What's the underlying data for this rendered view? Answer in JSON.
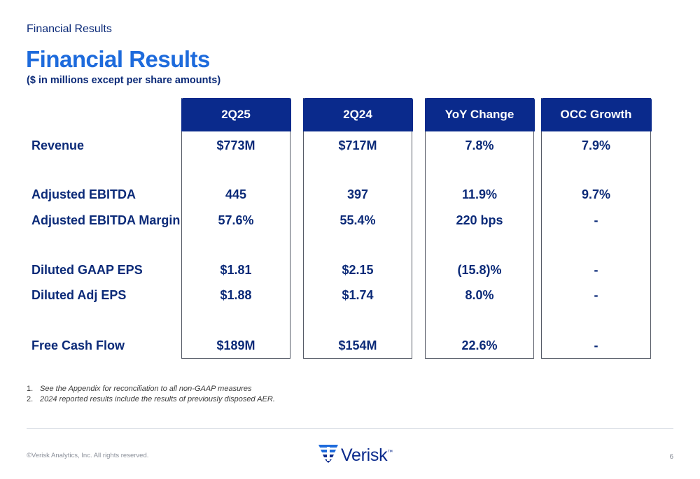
{
  "header": {
    "section_label": "Financial Results",
    "title": "Financial Results",
    "subtitle": "($ in millions except per share amounts)"
  },
  "table": {
    "columns": [
      "2Q25",
      "2Q24",
      "YoY Change",
      "OCC Growth"
    ],
    "rows": [
      {
        "label": "Revenue",
        "values": [
          "$773M",
          "$717M",
          "7.8%",
          "7.9%"
        ]
      },
      {
        "label": "Adjusted EBITDA",
        "values": [
          "445",
          "397",
          "11.9%",
          "9.7%"
        ]
      },
      {
        "label": "Adjusted EBITDA Margin",
        "values": [
          "57.6%",
          "55.4%",
          "220 bps",
          "-"
        ]
      },
      {
        "label": "Diluted GAAP EPS",
        "values": [
          "$1.81",
          "$2.15",
          "(15.8)%",
          "-"
        ]
      },
      {
        "label": "Diluted Adj EPS",
        "values": [
          "$1.88",
          "$1.74",
          "8.0%",
          "-"
        ]
      },
      {
        "label": "Free Cash Flow",
        "values": [
          "$189M",
          "$154M",
          "22.6%",
          "-"
        ]
      }
    ]
  },
  "footnotes": [
    {
      "num": "1.",
      "text": "See the Appendix for reconciliation to all non-GAAP measures"
    },
    {
      "num": "2.",
      "text": "2024 reported results include the results of previously disposed AER."
    }
  ],
  "footer": {
    "copyright": "©Verisk Analytics, Inc. All rights reserved.",
    "logo_text": "Verisk",
    "logo_tm": "™",
    "page_number": "6"
  },
  "colors": {
    "title_blue": "#1e6bdc",
    "navy": "#0b2a78",
    "header_fill": "#0a2a8c"
  },
  "icons": {
    "logo": "verisk-logo-icon"
  }
}
